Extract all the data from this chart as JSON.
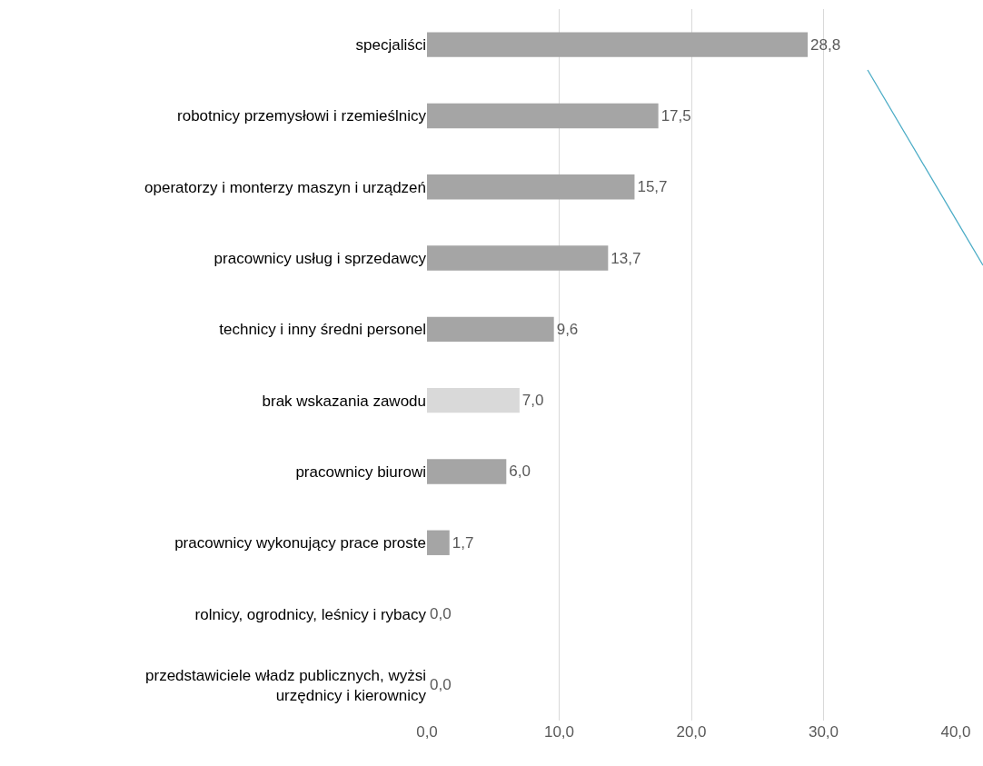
{
  "chart_data": {
    "type": "bar",
    "orientation": "horizontal",
    "categories": [
      "specjaliści",
      "robotnicy przemysłowi i rzemieślnicy",
      "operatorzy i monterzy maszyn i urządzeń",
      "pracownicy usług i sprzedawcy",
      "technicy i inny średni personel",
      "brak wskazania zawodu",
      "pracownicy biurowi",
      "pracownicy wykonujący prace proste",
      "rolnicy, ogrodnicy, leśnicy i rybacy",
      "przedstawiciele władz publicznych, wyżsi\nurzędnicy i kierownicy"
    ],
    "values": [
      28.8,
      17.5,
      15.7,
      13.7,
      9.6,
      7.0,
      6.0,
      1.7,
      0.0,
      0.0
    ],
    "value_labels": [
      "28,8",
      "17,5",
      "15,7",
      "13,7",
      "9,6",
      "7,0",
      "6,0",
      "1,7",
      "0,0",
      "0,0"
    ],
    "colors": [
      "#a5a5a5",
      "#a5a5a5",
      "#a5a5a5",
      "#a5a5a5",
      "#a5a5a5",
      "#d9d9d9",
      "#a5a5a5",
      "#a5a5a5",
      "#a5a5a5",
      "#a5a5a5"
    ],
    "xlim": [
      0,
      40
    ],
    "xticks": [
      {
        "value": 0,
        "label": "0,0"
      },
      {
        "value": 10,
        "label": "10,0"
      },
      {
        "value": 20,
        "label": "20,0"
      },
      {
        "value": 30,
        "label": "30,0"
      },
      {
        "value": 40,
        "label": "40,0"
      }
    ],
    "grid": "x",
    "legend": false
  }
}
